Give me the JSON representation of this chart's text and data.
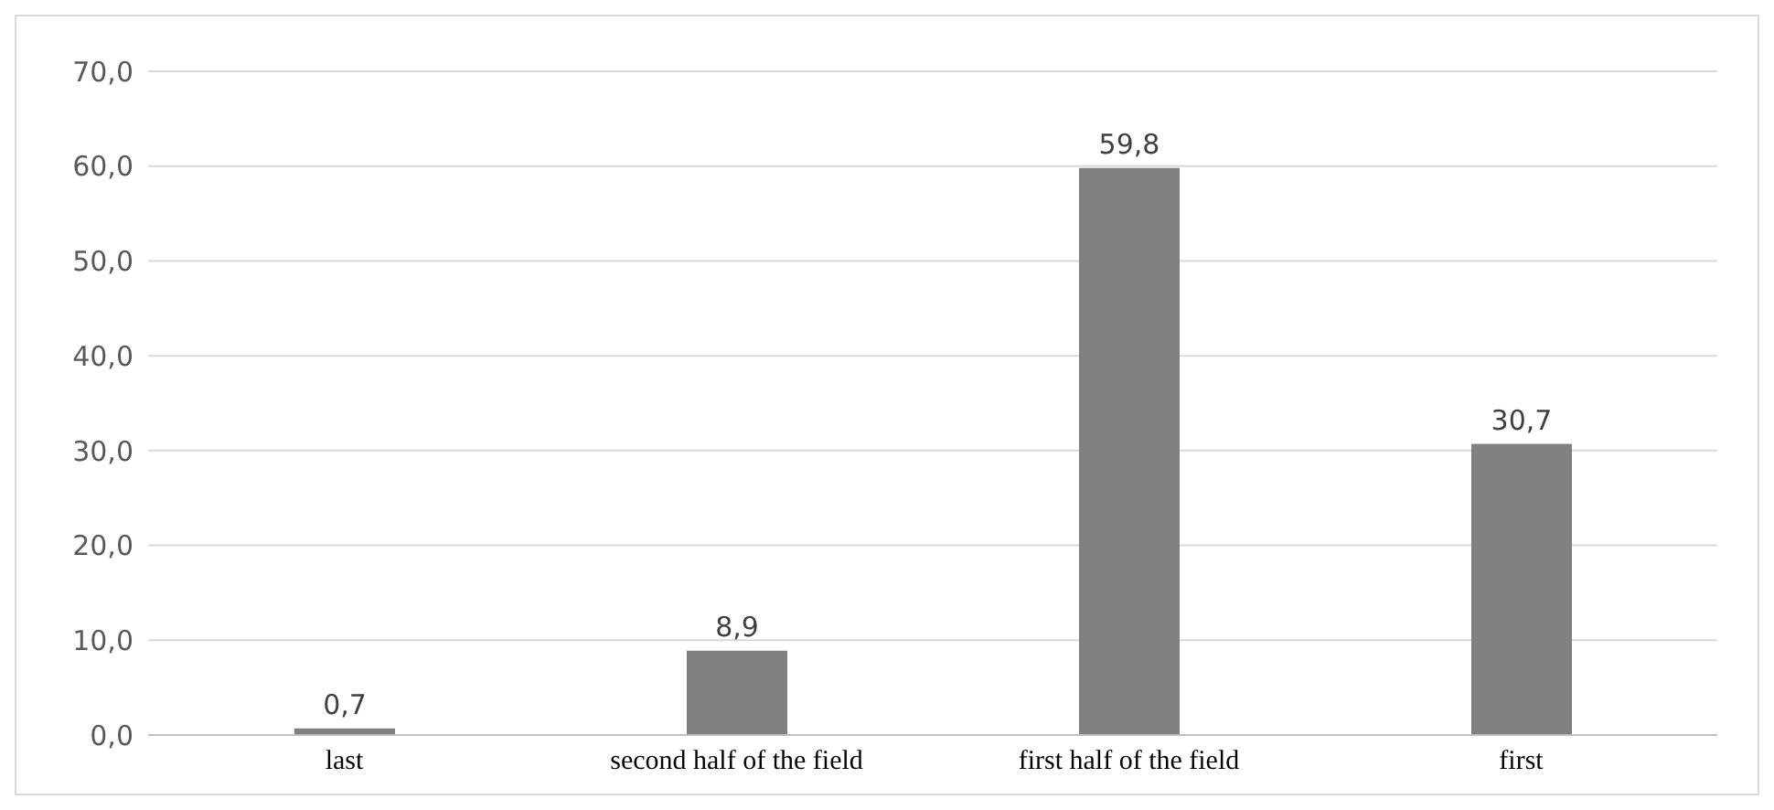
{
  "chart_data": {
    "type": "bar",
    "categories": [
      "last",
      "second half of the field",
      "first half of the field",
      "first"
    ],
    "values": [
      0.7,
      8.9,
      59.8,
      30.7
    ],
    "value_labels": [
      "0,7",
      "8,9",
      "59,8",
      "30,7"
    ],
    "color": "#808080",
    "ylim": [
      0,
      70
    ],
    "yticks": [
      {
        "value": 0,
        "label": "0,0"
      },
      {
        "value": 10,
        "label": "10,0"
      },
      {
        "value": 20,
        "label": "20,0"
      },
      {
        "value": 30,
        "label": "30,0"
      },
      {
        "value": 40,
        "label": "40,0"
      },
      {
        "value": 50,
        "label": "50,0"
      },
      {
        "value": 60,
        "label": "60,0"
      },
      {
        "value": 70,
        "label": "70,0"
      }
    ],
    "grid": "y"
  }
}
